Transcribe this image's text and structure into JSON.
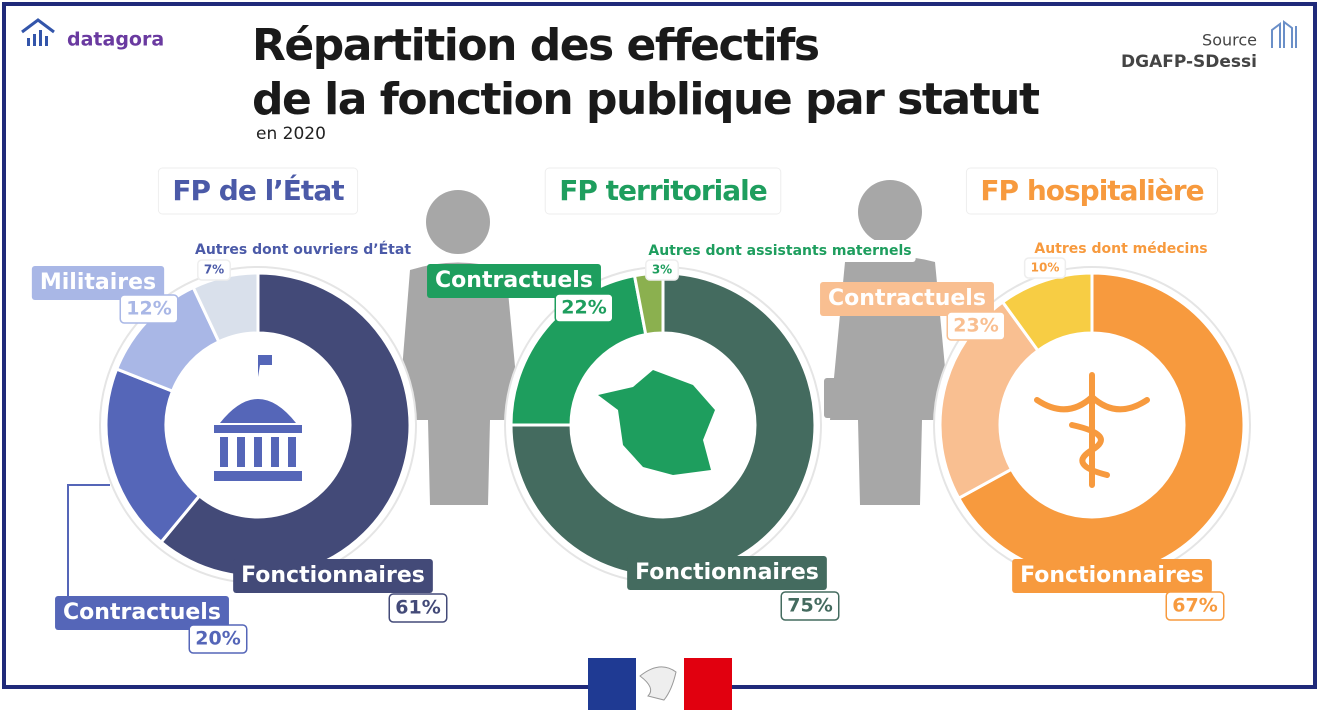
{
  "brand": "datagora",
  "title_lines": [
    "Répartition des effectifs",
    "de la fonction publique par statut"
  ],
  "subtitle": "en 2020",
  "source_label": "Source",
  "source": "DGAFP-SDessi",
  "chart_data": [
    {
      "type": "pie",
      "title": "FP de l’État",
      "categories": [
        "Fonctionnaires",
        "Contractuels",
        "Militaires",
        "Autres dont ouvriers d’État"
      ],
      "values": [
        61,
        20,
        12,
        7
      ],
      "value_labels": [
        "61%",
        "20%",
        "12%",
        "7%"
      ],
      "colors": [
        "#434a78",
        "#5566b8",
        "#a9b7e6",
        "#d9e0eb"
      ],
      "title_color": "#4b5aa8"
    },
    {
      "type": "pie",
      "title": "FP territoriale",
      "categories": [
        "Fonctionnaires",
        "Contractuels",
        "Autres dont assistants maternels"
      ],
      "values": [
        75,
        22,
        3
      ],
      "value_labels": [
        "75%",
        "22%",
        "3%"
      ],
      "colors": [
        "#446b5f",
        "#1e9e5e",
        "#8bb04f"
      ],
      "title_color": "#1e9e5e"
    },
    {
      "type": "pie",
      "title": "FP hospitalière",
      "categories": [
        "Fonctionnaires",
        "Contractuels",
        "Autres dont médecins"
      ],
      "values": [
        67,
        23,
        10
      ],
      "value_labels": [
        "67%",
        "23%",
        "10%"
      ],
      "colors": [
        "#f79a3e",
        "#f9bf91",
        "#f7cd44"
      ],
      "title_color": "#f79a3e"
    }
  ]
}
